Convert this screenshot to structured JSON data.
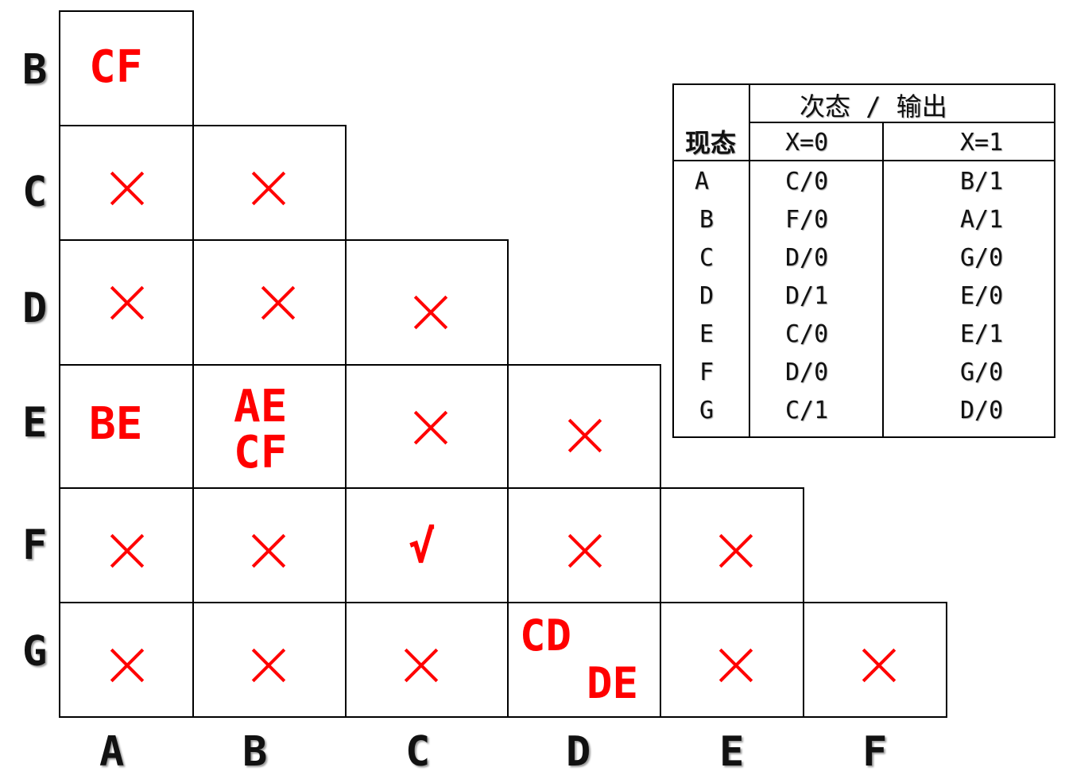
{
  "implication_chart": {
    "row_labels": [
      "B",
      "C",
      "D",
      "E",
      "F",
      "G"
    ],
    "col_labels": [
      "A",
      "B",
      "C",
      "D",
      "E",
      "F"
    ],
    "cells": {
      "B_A": [
        "CF"
      ],
      "C_A": "×",
      "C_B": "×",
      "D_A": "×",
      "D_B": "×",
      "D_C": "×",
      "E_A": [
        "BE"
      ],
      "E_B": [
        "AE",
        "CF"
      ],
      "E_C": "×",
      "E_D": "×",
      "F_A": "×",
      "F_B": "×",
      "F_C": "√",
      "F_D": "×",
      "F_E": "×",
      "G_A": "×",
      "G_B": "×",
      "G_C": "×",
      "G_D": [
        "CD",
        "DE"
      ],
      "G_E": "×",
      "G_F": "×"
    },
    "mark_color": "#ff0000"
  },
  "state_table": {
    "present_state_header": "现态",
    "next_output_header": "次态 / 输出",
    "x0_header": "X=0",
    "x1_header": "X=1",
    "rows": [
      {
        "state": "A",
        "x0": "C/0",
        "x1": "B/1"
      },
      {
        "state": "B",
        "x0": "F/0",
        "x1": "A/1"
      },
      {
        "state": "C",
        "x0": "D/0",
        "x1": "G/0"
      },
      {
        "state": "D",
        "x0": "D/1",
        "x1": "E/0"
      },
      {
        "state": "E",
        "x0": "C/0",
        "x1": "E/1"
      },
      {
        "state": "F",
        "x0": "D/0",
        "x1": "G/0"
      },
      {
        "state": "G",
        "x0": "C/1",
        "x1": "D/0"
      }
    ]
  }
}
